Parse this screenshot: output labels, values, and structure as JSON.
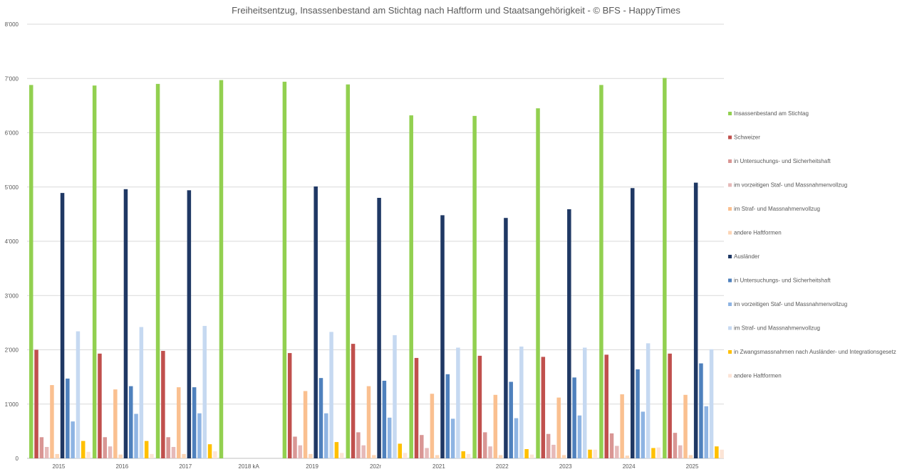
{
  "chart_data": {
    "type": "bar",
    "title": "Freiheitsentzug, Insassenbestand am Stichtag nach Haftform und Staatsangehörigkeit - © BFS - HappyTimes",
    "xlabel": "",
    "ylabel": "",
    "ylim": [
      0,
      8000
    ],
    "yticks": [
      0,
      1000,
      2000,
      3000,
      4000,
      5000,
      6000,
      7000,
      8000
    ],
    "ytick_labels": [
      "0",
      "1'000",
      "2'000",
      "3'000",
      "4'000",
      "5'000",
      "6'000",
      "7'000",
      "8'000"
    ],
    "grid": true,
    "legend_position": "right",
    "categories": [
      "2015",
      "2016",
      "2017",
      "2018 kA",
      "2019",
      "202r",
      "2021",
      "2022",
      "2023",
      "2024",
      "2025"
    ],
    "series": [
      {
        "name": "Insassenbestand am Stichtag",
        "color": "#92D050",
        "values": [
          6880,
          6870,
          6900,
          6970,
          6940,
          6890,
          6320,
          6310,
          6450,
          6880,
          7010
        ]
      },
      {
        "name": "Schweizer",
        "color": "#C0504D",
        "values": [
          2000,
          1930,
          1980,
          null,
          1940,
          2110,
          1850,
          1890,
          1870,
          1910,
          1930
        ]
      },
      {
        "name": "in Untersuchungs- und Sicherheitshaft",
        "color": "#D99694",
        "values": [
          390,
          390,
          390,
          null,
          400,
          480,
          430,
          480,
          450,
          460,
          470
        ]
      },
      {
        "name": "im vorzeitigen Staf- und Massnahmenvollzug",
        "color": "#E6B9B8",
        "values": [
          210,
          220,
          210,
          null,
          240,
          240,
          190,
          220,
          250,
          230,
          240
        ]
      },
      {
        "name": "im Straf- und Massnahmenvollzug",
        "color": "#FAC090",
        "values": [
          1350,
          1270,
          1310,
          null,
          1240,
          1330,
          1190,
          1170,
          1120,
          1180,
          1170
        ]
      },
      {
        "name": "andere Haftformen",
        "color": "#FCD5B5",
        "values": [
          80,
          70,
          80,
          null,
          80,
          60,
          60,
          60,
          60,
          50,
          60
        ]
      },
      {
        "name": "Ausländer",
        "color": "#1F3864",
        "values": [
          4890,
          4960,
          4940,
          null,
          5010,
          4800,
          4480,
          4430,
          4590,
          4980,
          5080
        ]
      },
      {
        "name": "in Untersuchungs- und Sicherheitshaft",
        "color": "#4F81BD",
        "values": [
          1470,
          1330,
          1310,
          null,
          1480,
          1430,
          1550,
          1410,
          1490,
          1640,
          1750
        ]
      },
      {
        "name": "im vorzeitigen Staf- und Massnahmenvollzug",
        "color": "#8EB4E3",
        "values": [
          680,
          820,
          830,
          null,
          830,
          750,
          730,
          740,
          790,
          860,
          960
        ]
      },
      {
        "name": "im Straf- und Massnahmenvollzug",
        "color": "#C6D9F1",
        "values": [
          2340,
          2420,
          2440,
          null,
          2330,
          2270,
          2040,
          2060,
          2040,
          2120,
          2010
        ]
      },
      {
        "name": "in Zwangsmassnahmen nach Ausländer- und Integrationsgesetz",
        "color": "#FFC000",
        "values": [
          320,
          320,
          260,
          null,
          300,
          270,
          130,
          170,
          160,
          190,
          220
        ]
      },
      {
        "name": "andere Haftformen",
        "color": "#FCE4D6",
        "values": [
          120,
          80,
          130,
          null,
          100,
          100,
          80,
          70,
          160,
          200,
          160
        ]
      }
    ]
  }
}
